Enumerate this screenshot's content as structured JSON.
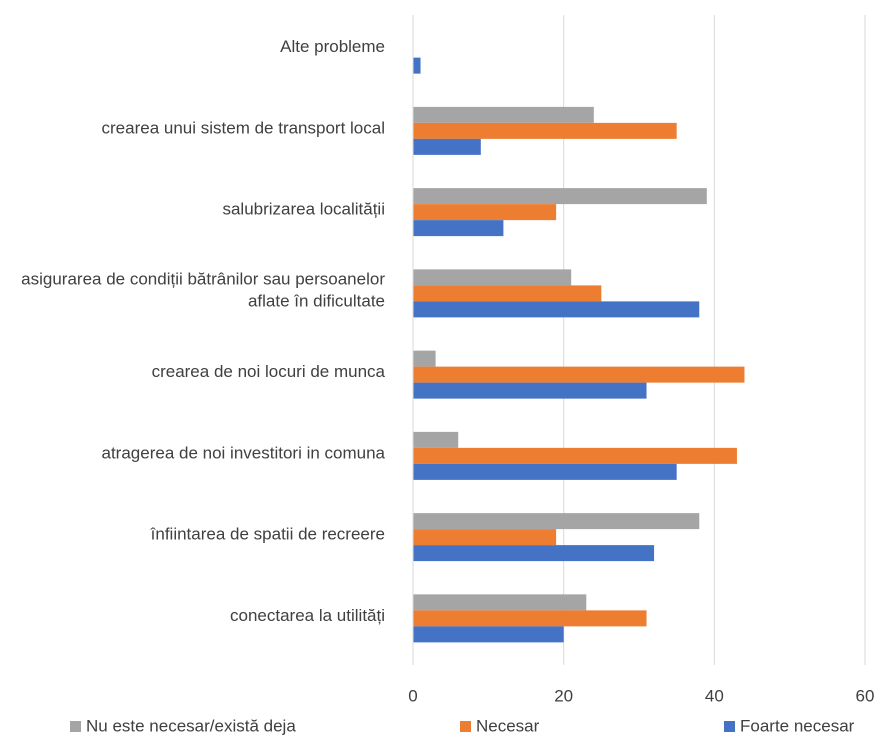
{
  "chart_data": {
    "type": "bar",
    "orientation": "horizontal",
    "categories": [
      "Alte probleme",
      "crearea unui sistem de transport local",
      "salubrizarea localității",
      "asigurarea de condiții bătrânilor sau persoanelor aflate în dificultate",
      "crearea de noi locuri de munca",
      "atragerea de noi investitori in comuna",
      "înfiintarea de spatii de recreere",
      "conectarea la utilități"
    ],
    "series": [
      {
        "name": "Nu este necesar/există deja",
        "color": "#a5a5a5",
        "values": [
          0,
          24,
          39,
          21,
          3,
          6,
          38,
          23
        ]
      },
      {
        "name": "Necesar",
        "color": "#ed7d31",
        "values": [
          0,
          35,
          19,
          25,
          44,
          43,
          19,
          31
        ]
      },
      {
        "name": "Foarte necesar",
        "color": "#4472c4",
        "values": [
          1,
          9,
          12,
          38,
          31,
          35,
          32,
          20
        ]
      }
    ],
    "xlim": [
      0,
      60
    ],
    "xticks": [
      0,
      20,
      40,
      60
    ],
    "grid": true,
    "legend": "bottom"
  }
}
